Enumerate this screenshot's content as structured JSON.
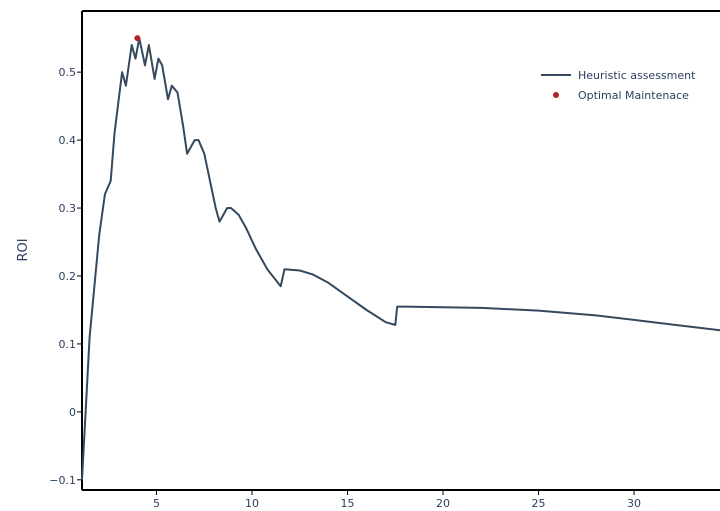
{
  "chart_data": {
    "type": "line",
    "ylabel": "ROI",
    "xlim": [
      1.1,
      34.5
    ],
    "ylim": [
      -0.115,
      0.59
    ],
    "x_ticks": [
      5,
      10,
      15,
      20,
      25,
      30
    ],
    "y_ticks": [
      -0.1,
      0,
      0.1,
      0.2,
      0.3,
      0.4,
      0.5
    ],
    "y_tick_labels": [
      "−0.1",
      "0",
      "0.1",
      "0.2",
      "0.3",
      "0.4",
      "0.5"
    ],
    "legend_position": "top-right",
    "colors": {
      "line": "#34495e",
      "point": "#b22222",
      "axis": "#000000",
      "text": "#2a3f5f"
    },
    "series": [
      {
        "name": "Heuristic assessment",
        "kind": "line",
        "x": [
          1.1,
          1.5,
          2.0,
          2.3,
          2.6,
          2.8,
          3.2,
          3.4,
          3.7,
          3.9,
          4.1,
          4.4,
          4.6,
          4.9,
          5.1,
          5.3,
          5.6,
          5.8,
          6.1,
          6.4,
          6.6,
          7.0,
          7.2,
          7.5,
          7.8,
          8.1,
          8.3,
          8.7,
          8.9,
          9.3,
          9.7,
          10.2,
          10.8,
          11.5,
          11.7,
          12.5,
          13.2,
          14.0,
          15.0,
          16.0,
          17.0,
          17.5,
          17.6,
          18.0,
          20.0,
          22.0,
          25.0,
          28.0,
          31.0,
          34.5
        ],
        "y": [
          -0.1,
          0.11,
          0.26,
          0.32,
          0.34,
          0.41,
          0.5,
          0.48,
          0.54,
          0.52,
          0.55,
          0.51,
          0.54,
          0.49,
          0.52,
          0.51,
          0.46,
          0.48,
          0.47,
          0.42,
          0.38,
          0.4,
          0.4,
          0.38,
          0.34,
          0.3,
          0.28,
          0.3,
          0.3,
          0.29,
          0.27,
          0.24,
          0.21,
          0.185,
          0.21,
          0.208,
          0.202,
          0.19,
          0.17,
          0.15,
          0.132,
          0.128,
          0.155,
          0.155,
          0.154,
          0.153,
          0.149,
          0.142,
          0.132,
          0.12
        ]
      },
      {
        "name": "Optimal Maintenace",
        "kind": "point",
        "x": [
          4.0
        ],
        "y": [
          0.55
        ]
      }
    ]
  }
}
